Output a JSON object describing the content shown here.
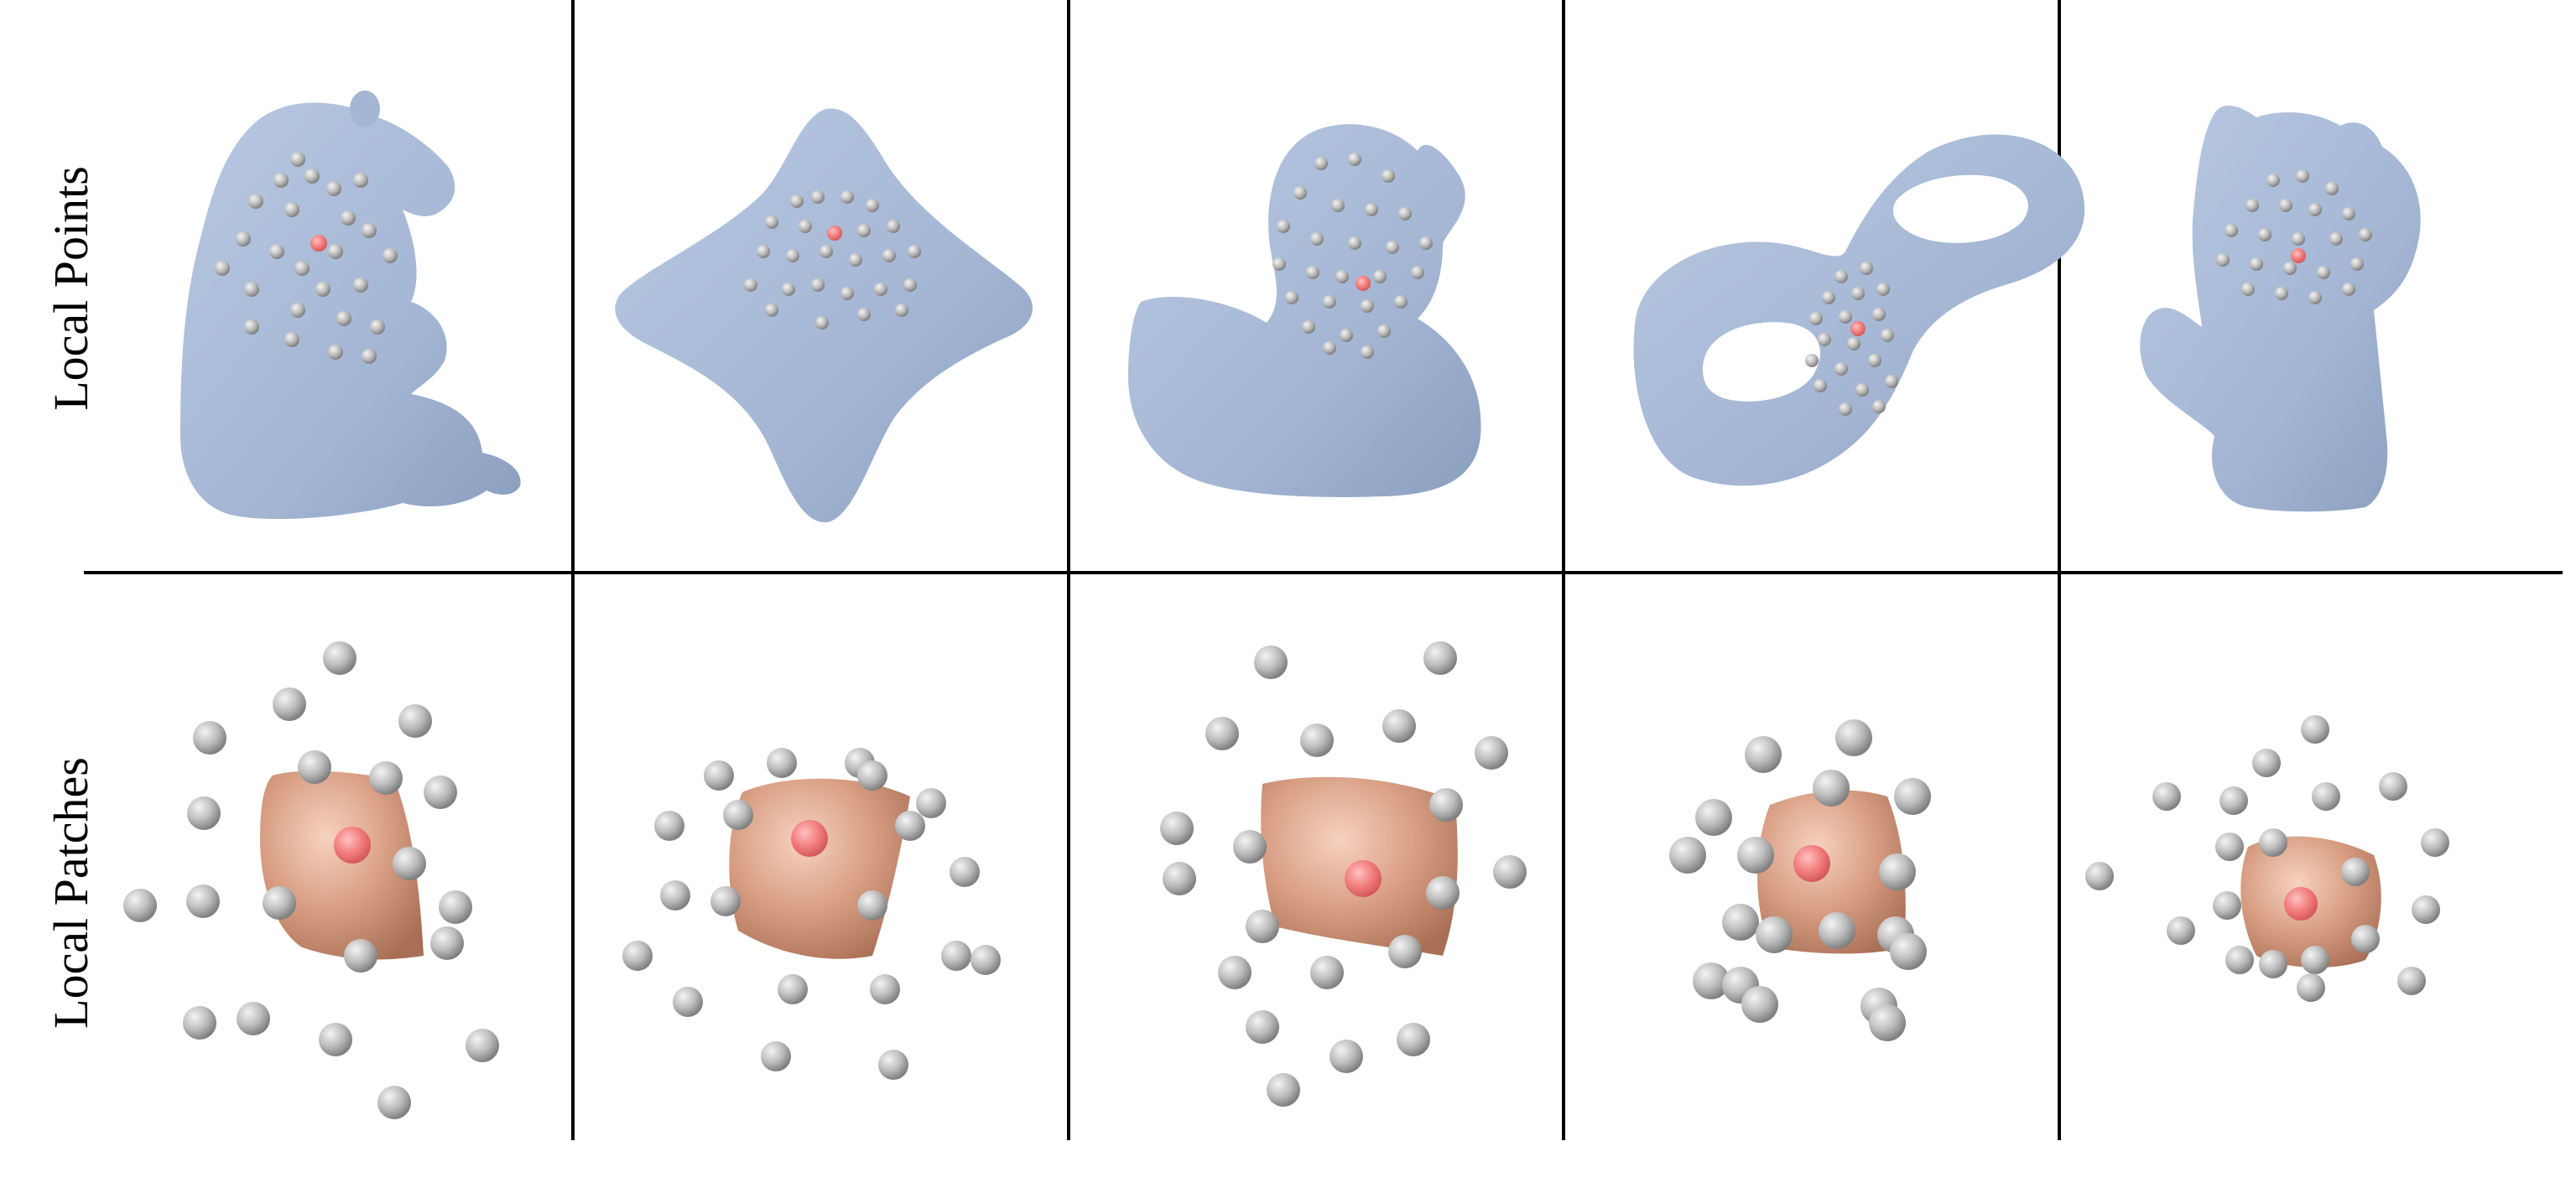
{
  "figure": {
    "row_labels": {
      "top": "Local Points",
      "bottom": "Local Patches"
    },
    "columns": [
      {
        "shape": "bear"
      },
      {
        "shape": "rounded-star"
      },
      {
        "shape": "rubber-duck"
      },
      {
        "shape": "double-torus"
      },
      {
        "shape": "cat"
      }
    ],
    "colors": {
      "mesh": "#a9bbd8",
      "mesh_shadow": "#8598b8",
      "neighbor_point": "#b9b9b9",
      "center_point": "#f08a8a",
      "patch_surface": "#d9a085",
      "grid_line": "#000000"
    }
  }
}
